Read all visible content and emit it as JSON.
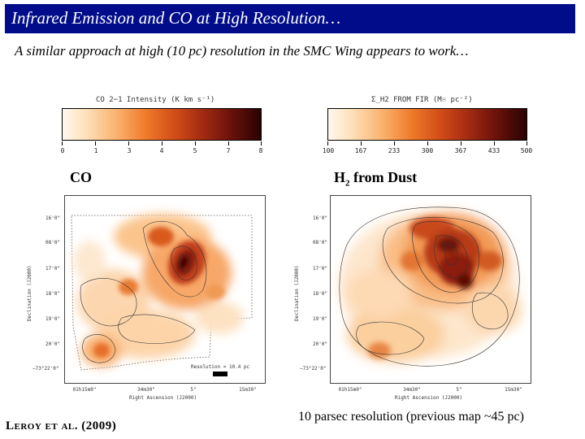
{
  "title": "Infrared Emission and CO at High Resolution…",
  "subtitle": "A similar approach at high (10 pc) resolution in the SMC Wing appears to work…",
  "colorbars": {
    "co": {
      "title": "CO 2−1 Intensity (K km s⁻¹)",
      "ticks": [
        "0",
        "1",
        "3",
        "4",
        "5",
        "7",
        "8"
      ]
    },
    "dust": {
      "title": "Σ_H2 FROM FIR (M☉ pc⁻²)",
      "ticks": [
        "100",
        "167",
        "233",
        "300",
        "367",
        "433",
        "500"
      ]
    }
  },
  "maps": {
    "co": {
      "label": "CO",
      "y_ticks": [
        "16'0\"",
        "08'0\"",
        "17'0\"",
        "18'0\"",
        "19'0\"",
        "20'0\"",
        "−73°22'0\""
      ],
      "x_ticks": [
        "01h15m0\"",
        "34m30\"",
        "5\"",
        "15m30\""
      ],
      "y_axis": "Declination (J2000)",
      "x_axis": "Right Ascension (J2000)",
      "resolution_note": "Resolution = 10.4 pc"
    },
    "dust": {
      "label_main": "H",
      "label_sub": "2",
      "label_rest": " from Dust",
      "y_ticks": [
        "16'0\"",
        "08'0\"",
        "17'0\"",
        "18'0\"",
        "19'0\"",
        "20'0\"",
        "−73°22'0\""
      ],
      "x_ticks": [
        "01h15m0\"",
        "34m30\"",
        "5\"",
        "15m30\""
      ],
      "y_axis": "Declination (J2000)",
      "x_axis": "Right Ascension (J2000)"
    }
  },
  "citation": "Leroy et al. (2009)",
  "footnote": "10 parsec resolution (previous map ~45 pc)",
  "colors": {
    "title_bar": "#000c8a"
  }
}
